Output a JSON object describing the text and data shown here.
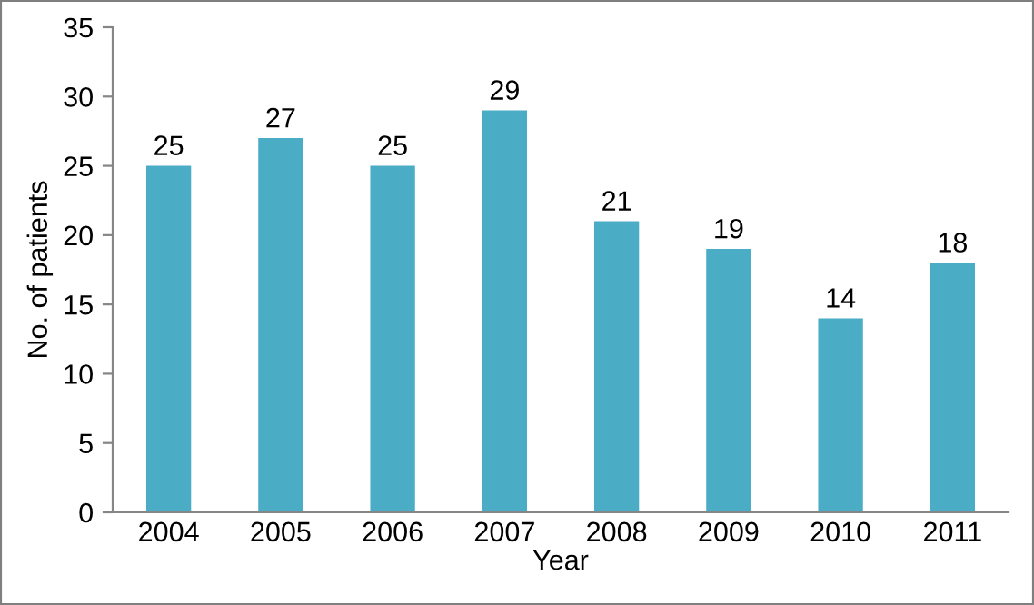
{
  "chart_data": {
    "type": "bar",
    "xlabel": "Year",
    "ylabel": "No. of patients",
    "categories": [
      "2004",
      "2005",
      "2006",
      "2007",
      "2008",
      "2009",
      "2010",
      "2011"
    ],
    "values": [
      25,
      27,
      25,
      29,
      21,
      19,
      14,
      18
    ],
    "color": "#4bacc6",
    "ylim": [
      0,
      35
    ],
    "yticks": [
      0,
      5,
      10,
      15,
      20,
      25,
      30,
      35
    ],
    "data_labels": true,
    "grid": false,
    "legend": false
  }
}
